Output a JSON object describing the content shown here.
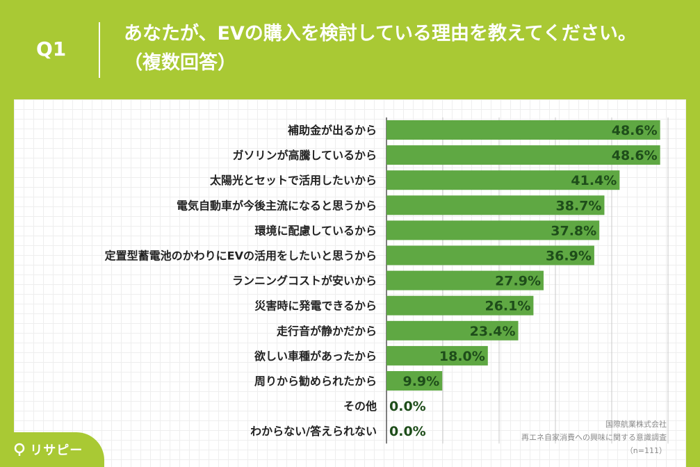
{
  "header": {
    "question_number": "Q1",
    "question_line1": "あなたが、EVの購入を検討している理由を教えてください。",
    "question_line2": "（複数回答）"
  },
  "footer": {
    "company": "国際航業株式会社",
    "survey": "再エネ自家消費への興味に関する意識調査",
    "sample": "（n=111）"
  },
  "logo": {
    "text": "リサピー",
    "icon": "pin-icon"
  },
  "colors": {
    "background": "#a9c934",
    "bar": "#5fa843",
    "value_text": "#1e4d1a"
  },
  "chart_data": {
    "type": "bar",
    "orientation": "horizontal",
    "categories": [
      "補助金が出るから",
      "ガソリンが高騰しているから",
      "太陽光とセットで活用したいから",
      "電気自動車が今後主流になると思うから",
      "環境に配慮しているから",
      "定置型蓄電池のかわりにEVの活用をしたいと思うから",
      "ランニングコストが安いから",
      "災害時に発電できるから",
      "走行音が静かだから",
      "欲しい車種があったから",
      "周りから勧められたから",
      "その他",
      "わからない/答えられない"
    ],
    "values": [
      48.6,
      48.6,
      41.4,
      38.7,
      37.8,
      36.9,
      27.9,
      26.1,
      23.4,
      18.0,
      9.9,
      0.0,
      0.0
    ],
    "value_labels": [
      "48.6%",
      "48.6%",
      "41.4%",
      "38.7%",
      "37.8%",
      "36.9%",
      "27.9%",
      "26.1%",
      "23.4%",
      "18.0%",
      "9.9%",
      "0.0%",
      "0.0%"
    ],
    "xlim": [
      0,
      50
    ],
    "grid": true,
    "legend": "none"
  }
}
